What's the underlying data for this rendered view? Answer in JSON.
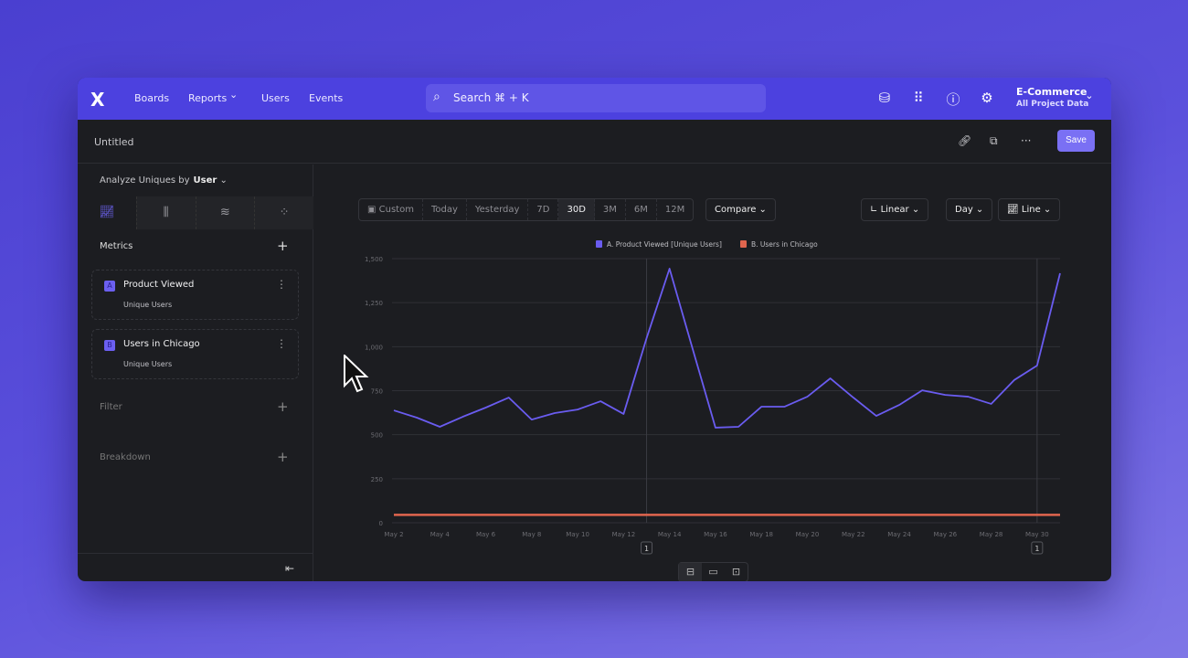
{
  "nav": {
    "logo": "X",
    "items": [
      "Boards",
      "Reports",
      "Users",
      "Events"
    ],
    "reports_chevron": "⌄",
    "search": "Search  ⌘ + K",
    "project": "E-Commerce",
    "project_sub": "All Project Data"
  },
  "toolbar": {
    "title": "Untitled",
    "save": "Save"
  },
  "sidebar": {
    "analyze_label": "Analyze Uniques by",
    "analyze_value": "User",
    "metrics_label": "Metrics",
    "filter_label": "Filter",
    "breakdown_label": "Breakdown",
    "metrics": [
      {
        "badge": "A",
        "name": "Product Viewed",
        "sub": "Unique Users"
      },
      {
        "badge": "B",
        "name": "Users in Chicago",
        "sub": "Unique Users"
      }
    ]
  },
  "controls": {
    "ranges": [
      "Custom",
      "Today",
      "Yesterday",
      "7D",
      "30D",
      "3M",
      "6M",
      "12M"
    ],
    "selected_range": "30D",
    "compare": "Compare",
    "scale": "Linear",
    "interval": "Day",
    "chart_type": "Line"
  },
  "colors": {
    "accent": "#4c41df",
    "series_a": "#6a5cf0",
    "series_b": "#e0654e"
  },
  "chart_data": {
    "type": "line",
    "x": [
      "May 2",
      "May 3",
      "May 4",
      "May 5",
      "May 6",
      "May 7",
      "May 8",
      "May 9",
      "May 10",
      "May 11",
      "May 12",
      "May 13",
      "May 14",
      "May 15",
      "May 16",
      "May 17",
      "May 18",
      "May 19",
      "May 20",
      "May 21",
      "May 22",
      "May 23",
      "May 24",
      "May 25",
      "May 26",
      "May 27",
      "May 28",
      "May 29",
      "May 30",
      "May 31"
    ],
    "x_tick_labels": [
      "May 2",
      "May 4",
      "May 6",
      "May 8",
      "May 10",
      "May 12",
      "May 14",
      "May 16",
      "May 18",
      "May 20",
      "May 22",
      "May 24",
      "May 26",
      "May 28",
      "May 30"
    ],
    "y_ticks": [
      "0",
      "250",
      "500",
      "750",
      "1,000",
      "1,250",
      "1,500"
    ],
    "ylim": [
      0,
      1500
    ],
    "grid": true,
    "legend_position": "top-center",
    "series": [
      {
        "name": "A. Product Viewed [Unique Users]",
        "color": "#6a5cf0",
        "values": [
          638,
          597,
          545,
          602,
          654,
          711,
          586,
          623,
          643,
          690,
          618,
          1048,
          1443,
          990,
          540,
          545,
          659,
          659,
          716,
          820,
          711,
          607,
          669,
          752,
          726,
          716,
          675,
          810,
          893,
          1417
        ]
      },
      {
        "name": "B. Users in Chicago",
        "color": "#e0654e",
        "values": [
          45,
          45,
          45,
          45,
          45,
          45,
          45,
          45,
          45,
          45,
          45,
          45,
          45,
          45,
          45,
          45,
          45,
          45,
          45,
          45,
          45,
          45,
          45,
          45,
          45,
          45,
          45,
          45,
          45,
          45
        ]
      }
    ],
    "annotations": [
      {
        "x": "May 13",
        "label": "1"
      },
      {
        "x": "May 30",
        "label": "1"
      }
    ]
  }
}
